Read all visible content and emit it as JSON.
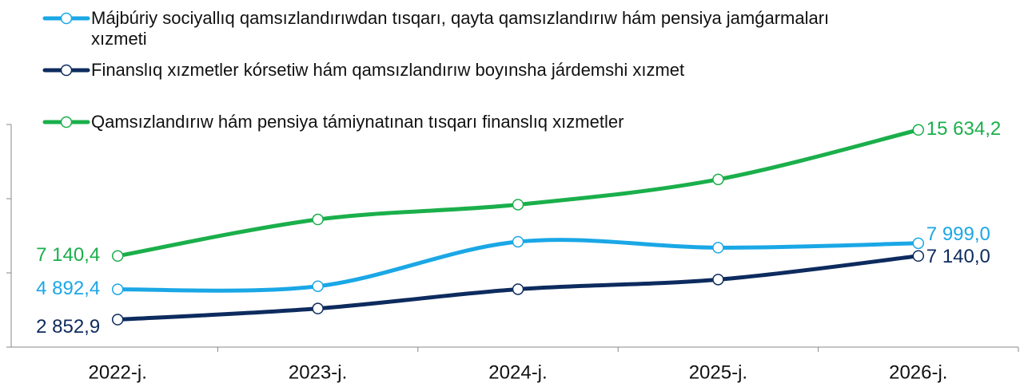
{
  "chart_data": {
    "type": "line",
    "categories": [
      "2022-j.",
      "2023-j.",
      "2024-j.",
      "2025-j.",
      "2026-j."
    ],
    "series": [
      {
        "name": "Májbúriy sociyallıq qamsızlandırıwdan tısqarı, qayta qamsızlandırıw hám pensiya jamǵarmaları xızmeti",
        "color": "#1aa7e6",
        "values": [
          4892.4,
          5100,
          8100,
          7700,
          7999.0
        ],
        "value_labels": [
          "4 892,4",
          null,
          null,
          null,
          "7 999,0"
        ]
      },
      {
        "name": "Finanslıq xızmetler kórsetiw hám qamsızlandırıw boyınsha járdemshi xızmet",
        "color": "#0d2b5e",
        "values": [
          2852.9,
          3600,
          4900,
          5550,
          7140.0
        ],
        "value_labels": [
          "2 852,9",
          null,
          null,
          null,
          "7 140,0"
        ]
      },
      {
        "name": "Qamsızlandırıw hám pensiya támiynatınan tısqarı finanslıq xızmetler",
        "color": "#1aaf4b",
        "values": [
          7140.4,
          9600,
          10600,
          12300,
          15634.2
        ],
        "value_labels": [
          "7 140,4",
          null,
          null,
          null,
          "15 634,2"
        ]
      }
    ],
    "ylim": [
      1000,
      16000
    ],
    "yticks": [
      1000,
      6000,
      11000,
      16000
    ],
    "grid": false
  }
}
